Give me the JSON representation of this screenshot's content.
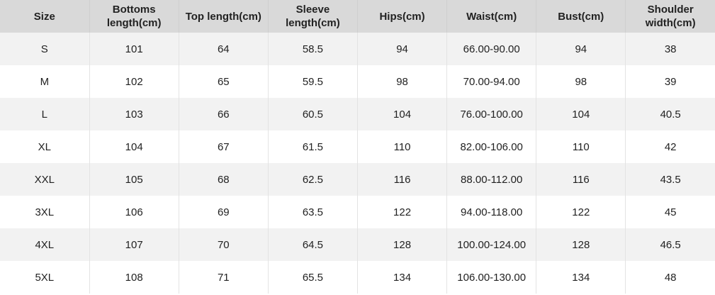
{
  "table": {
    "header": [
      "Size",
      "Bottoms length(cm)",
      "Top length(cm)",
      "Sleeve length(cm)",
      "Hips(cm)",
      "Waist(cm)",
      "Bust(cm)",
      "Shoulder width(cm)"
    ],
    "rows": [
      [
        "S",
        "101",
        "64",
        "58.5",
        "94",
        "66.00-90.00",
        "94",
        "38"
      ],
      [
        "M",
        "102",
        "65",
        "59.5",
        "98",
        "70.00-94.00",
        "98",
        "39"
      ],
      [
        "L",
        "103",
        "66",
        "60.5",
        "104",
        "76.00-100.00",
        "104",
        "40.5"
      ],
      [
        "XL",
        "104",
        "67",
        "61.5",
        "110",
        "82.00-106.00",
        "110",
        "42"
      ],
      [
        "XXL",
        "105",
        "68",
        "62.5",
        "116",
        "88.00-112.00",
        "116",
        "43.5"
      ],
      [
        "3XL",
        "106",
        "69",
        "63.5",
        "122",
        "94.00-118.00",
        "122",
        "45"
      ],
      [
        "4XL",
        "107",
        "70",
        "64.5",
        "128",
        "100.00-124.00",
        "128",
        "46.5"
      ],
      [
        "5XL",
        "108",
        "71",
        "65.5",
        "134",
        "106.00-130.00",
        "134",
        "48"
      ]
    ]
  }
}
